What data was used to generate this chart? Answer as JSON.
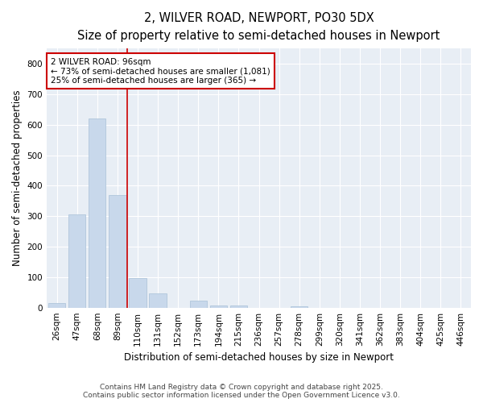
{
  "title": "2, WILVER ROAD, NEWPORT, PO30 5DX",
  "subtitle": "Size of property relative to semi-detached houses in Newport",
  "xlabel": "Distribution of semi-detached houses by size in Newport",
  "ylabel": "Number of semi-detached properties",
  "categories": [
    "26sqm",
    "47sqm",
    "68sqm",
    "89sqm",
    "110sqm",
    "131sqm",
    "152sqm",
    "173sqm",
    "194sqm",
    "215sqm",
    "236sqm",
    "257sqm",
    "278sqm",
    "299sqm",
    "320sqm",
    "341sqm",
    "362sqm",
    "383sqm",
    "404sqm",
    "425sqm",
    "446sqm"
  ],
  "values": [
    15,
    305,
    620,
    370,
    97,
    47,
    0,
    22,
    8,
    8,
    0,
    0,
    5,
    0,
    0,
    0,
    0,
    0,
    0,
    0,
    0
  ],
  "bar_color": "#c8d8eb",
  "bar_edgecolor": "#a8c0d8",
  "property_line_x": 3.5,
  "annotation_text_line1": "2 WILVER ROAD: 96sqm",
  "annotation_text_line2": "← 73% of semi-detached houses are smaller (1,081)",
  "annotation_text_line3": "25% of semi-detached houses are larger (365) →",
  "annotation_box_color": "#cc0000",
  "ylim": [
    0,
    850
  ],
  "yticks": [
    0,
    100,
    200,
    300,
    400,
    500,
    600,
    700,
    800
  ],
  "footer_line1": "Contains HM Land Registry data © Crown copyright and database right 2025.",
  "footer_line2": "Contains public sector information licensed under the Open Government Licence v3.0.",
  "fig_bg_color": "#ffffff",
  "plot_bg_color": "#e8eef5",
  "grid_color": "#ffffff",
  "title_fontsize": 10.5,
  "subtitle_fontsize": 9,
  "axis_label_fontsize": 8.5,
  "tick_fontsize": 7.5,
  "annotation_fontsize": 7.5,
  "footer_fontsize": 6.5
}
